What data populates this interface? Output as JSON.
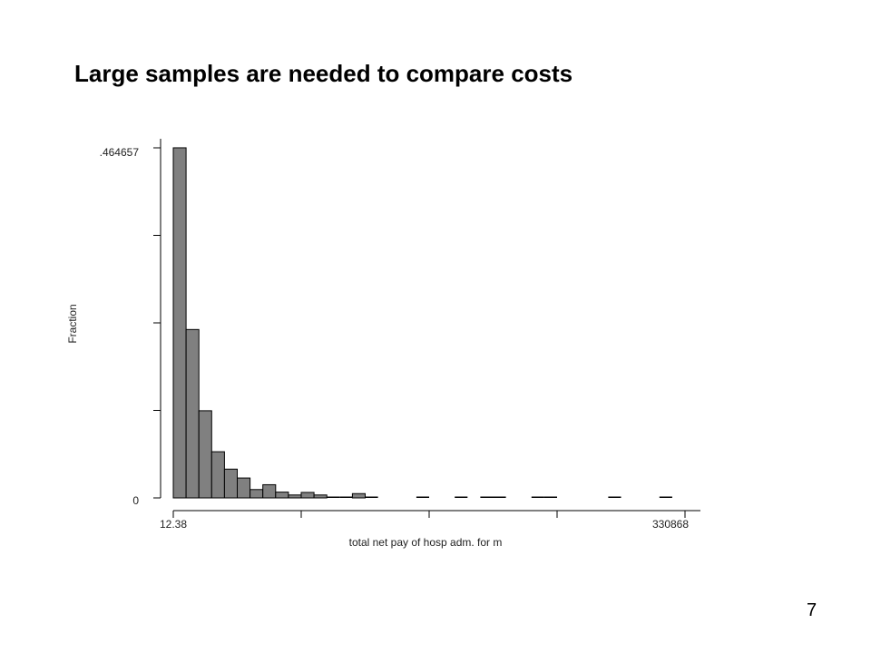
{
  "slide": {
    "title": "Large samples are needed to compare costs",
    "page_number": "7"
  },
  "chart_data": {
    "type": "bar",
    "title": "",
    "xlabel": "total net pay of hosp adm. for m",
    "ylabel": "Fraction",
    "xlim": [
      12.38,
      330868
    ],
    "ylim": [
      0,
      0.464657
    ],
    "x_tick_labels": [
      "12.38",
      "330868"
    ],
    "y_tick_labels": [
      "0",
      ".464657"
    ],
    "bins": 40,
    "bin_width": 8271.4,
    "values": [
      0.4647,
      0.2235,
      0.1157,
      0.0613,
      0.0382,
      0.0264,
      0.0111,
      0.0175,
      0.0077,
      0.0039,
      0.0073,
      0.0039,
      0.0023,
      0.0023,
      0.0057,
      0.0015,
      0.0,
      0.0,
      0.0,
      0.0015,
      0.0,
      0.0,
      0.0015,
      0.0,
      0.0015,
      0.0015,
      0.0,
      0.0,
      0.0015,
      0.0015,
      0.0,
      0.0,
      0.0,
      0.0,
      0.0015,
      0.0,
      0.0,
      0.0,
      0.0015,
      0.0
    ],
    "bar_color": "#808080",
    "grid": false
  }
}
